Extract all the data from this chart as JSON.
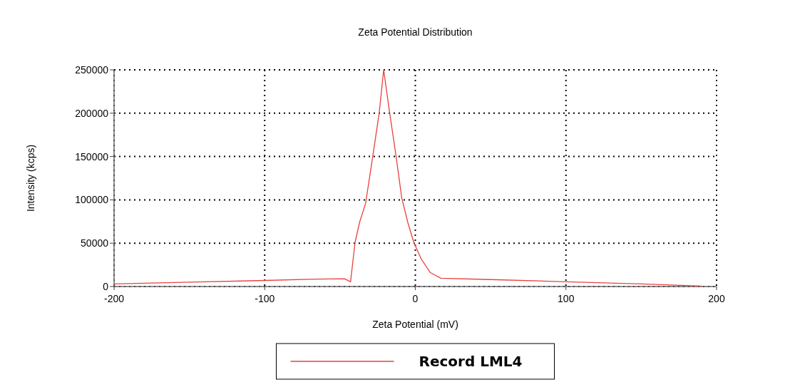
{
  "chart_data": {
    "type": "line",
    "title": "Zeta Potential Distribution",
    "xlabel": "Zeta Potential (mV)",
    "ylabel": "Intensity (kcps)",
    "xlim": [
      -200,
      200
    ],
    "xticks": [
      -200,
      -100,
      0,
      100,
      200
    ],
    "ylim": [
      0,
      250000
    ],
    "yticks": [
      0,
      50000,
      100000,
      150000,
      200000,
      250000
    ],
    "grid": true,
    "legend": "bottom",
    "line_style": "solid",
    "marker": "none",
    "series": [
      {
        "name": "Record LML4",
        "color": "#e8413f",
        "x": [
          -200,
          -150,
          -100,
          -66,
          -47,
          -43,
          -40,
          -37,
          -33,
          -28,
          -24,
          -21,
          -17,
          -13,
          -9,
          -5,
          -1,
          4,
          10,
          17,
          50,
          100,
          150,
          190
        ],
        "values": [
          3000,
          5000,
          7000,
          8500,
          9000,
          5500,
          51000,
          74000,
          96000,
          153000,
          200000,
          250000,
          200000,
          153000,
          102000,
          74000,
          51000,
          31500,
          16000,
          9500,
          8000,
          5500,
          3000,
          500
        ]
      }
    ]
  }
}
